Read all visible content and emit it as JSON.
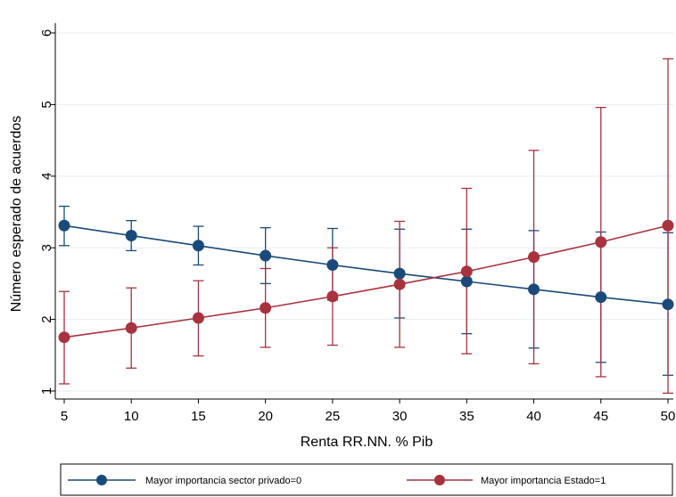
{
  "chart_data": {
    "type": "line",
    "title": "",
    "xlabel": "Renta RR.NN. % Pib",
    "ylabel": "Número esperado de acuerdos",
    "x": [
      5,
      10,
      15,
      20,
      25,
      30,
      35,
      40,
      45,
      50
    ],
    "x_ticks": [
      "5",
      "10",
      "15",
      "20",
      "25",
      "30",
      "35",
      "40",
      "45",
      "50"
    ],
    "y_ticks": [
      "1",
      "2",
      "3",
      "4",
      "5",
      "6"
    ],
    "xlim": [
      5,
      50
    ],
    "ylim": [
      1,
      6
    ],
    "grid": true,
    "legend_position": "bottom",
    "series": [
      {
        "name": "Mayor importancia sector privado=0",
        "color": "#1a4a7a",
        "values": [
          3.31,
          3.17,
          3.03,
          2.89,
          2.76,
          2.64,
          2.53,
          2.42,
          2.31,
          2.21
        ],
        "lower": [
          3.03,
          2.96,
          2.76,
          2.5,
          2.27,
          2.02,
          1.8,
          1.6,
          1.4,
          1.22
        ],
        "upper": [
          3.58,
          3.38,
          3.3,
          3.28,
          3.27,
          3.26,
          3.26,
          3.24,
          3.22,
          3.21
        ]
      },
      {
        "name": "Mayor importancia Estado=1",
        "color": "#a8323e",
        "values": [
          1.75,
          1.88,
          2.02,
          2.16,
          2.32,
          2.49,
          2.67,
          2.87,
          3.08,
          3.31
        ],
        "lower": [
          1.1,
          1.32,
          1.49,
          1.61,
          1.64,
          1.61,
          1.52,
          1.38,
          1.2,
          0.97
        ],
        "upper": [
          2.39,
          2.44,
          2.54,
          2.71,
          3.0,
          3.37,
          3.83,
          4.36,
          4.96,
          5.64
        ]
      }
    ]
  }
}
